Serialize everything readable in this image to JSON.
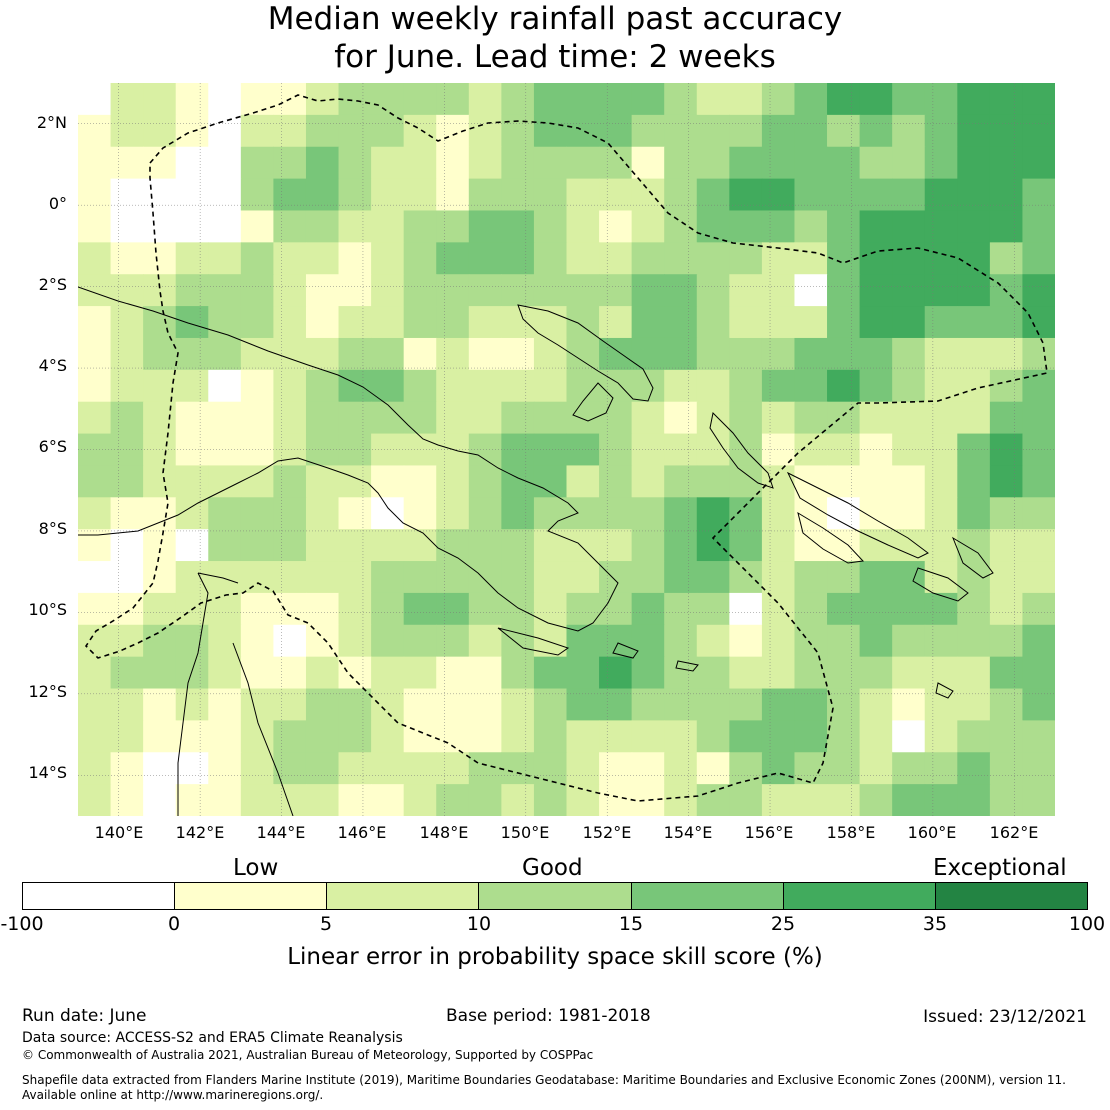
{
  "title": {
    "line1": "Median weekly rainfall past accuracy",
    "line2": "for June. Lead time: 2 weeks"
  },
  "map": {
    "lat_labels": [
      "2°N",
      "0°",
      "2°S",
      "4°S",
      "6°S",
      "8°S",
      "10°S",
      "12°S",
      "14°S"
    ],
    "lon_labels": [
      "140°E",
      "142°E",
      "144°E",
      "146°E",
      "148°E",
      "150°E",
      "152°E",
      "154°E",
      "156°E",
      "158°E",
      "160°E",
      "162°E"
    ],
    "lat_range": [
      -15,
      3
    ],
    "lon_range": [
      139,
      163
    ],
    "grid_resolution_deg": 0.8,
    "layers": [
      "skill-score-grid",
      "coastlines",
      "eez-boundary-dashed",
      "graticule"
    ]
  },
  "legend": {
    "categories": [
      "Low",
      "Good",
      "Exceptional"
    ],
    "ticks": [
      "-100",
      "0",
      "5",
      "10",
      "15",
      "25",
      "35",
      "100"
    ],
    "colors": [
      "#ffffff",
      "#ffffcc",
      "#d9f0a3",
      "#addd8e",
      "#78c679",
      "#41ab5d",
      "#238443"
    ],
    "label": "Linear error in probability space skill score (%)"
  },
  "footer": {
    "run_date": "Run date: June",
    "base_period": "Base period: 1981-2018",
    "issued": "Issued: 23/12/2021",
    "data_source": "Data source: ACCESS-S2 and ERA5 Climate Reanalysis",
    "copyright": "© Commonwealth of Australia 2021, Australian Bureau of Meteorology, Supported by COSPPac",
    "shapefile_line1": "Shapefile data extracted from Flanders Marine Institute (2019), Maritime Boundaries Geodatabase: Maritime Boundaries and Exclusive Economic Zones (200NM), version 11.",
    "shapefile_line2": "Available online at http://www.marineregions.org/."
  }
}
